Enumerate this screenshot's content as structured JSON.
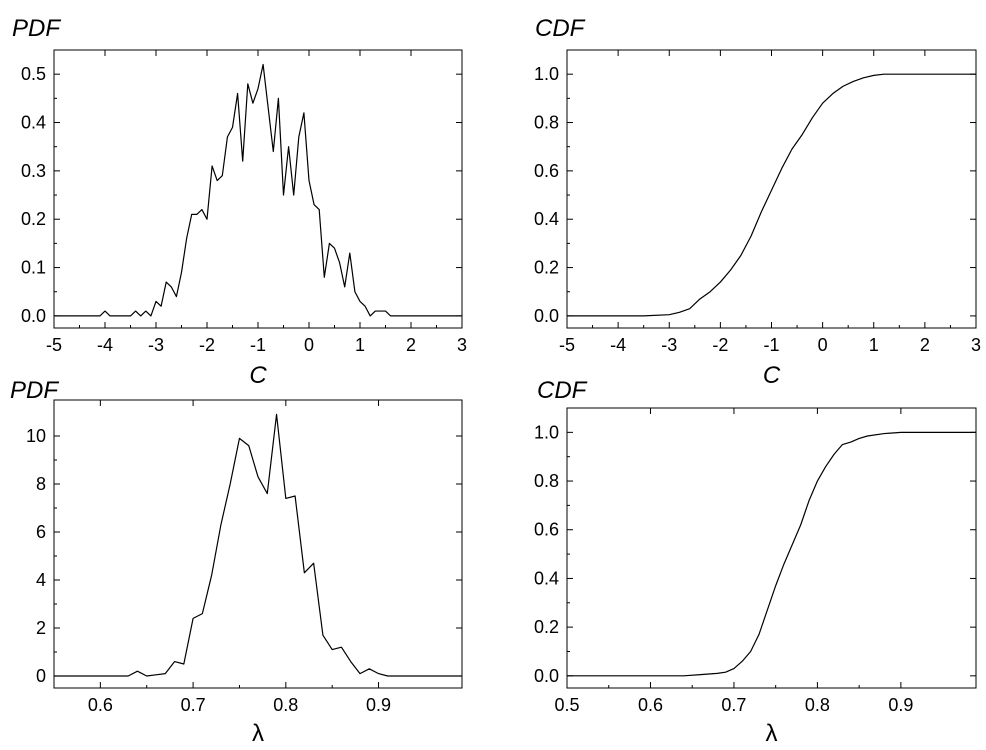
{
  "chart_data": [
    {
      "id": "pdf-c",
      "type": "line",
      "title": "PDF",
      "xlabel": "C",
      "ylabel": "",
      "xlim": [
        -5,
        3
      ],
      "ylim": [
        -0.025,
        0.55
      ],
      "xticks": [
        -5,
        -4,
        -3,
        -2,
        -1,
        0,
        1,
        2,
        3
      ],
      "xtick_labels": [
        "-5",
        "-4",
        "-3",
        "-2",
        "-1",
        "0",
        "1",
        "2",
        "3"
      ],
      "yticks": [
        0.0,
        0.1,
        0.2,
        0.3,
        0.4,
        0.5
      ],
      "ytick_labels": [
        "0.0",
        "0.1",
        "0.2",
        "0.3",
        "0.4",
        "0.5"
      ],
      "grid": false,
      "series": [
        {
          "x": [
            -5.0,
            -4.1,
            -4.0,
            -3.9,
            -3.5,
            -3.4,
            -3.3,
            -3.2,
            -3.1,
            -3.0,
            -2.9,
            -2.8,
            -2.7,
            -2.6,
            -2.5,
            -2.4,
            -2.3,
            -2.2,
            -2.1,
            -2.0,
            -1.9,
            -1.8,
            -1.7,
            -1.6,
            -1.5,
            -1.4,
            -1.3,
            -1.2,
            -1.1,
            -1.0,
            -0.9,
            -0.8,
            -0.7,
            -0.6,
            -0.5,
            -0.4,
            -0.3,
            -0.2,
            -0.1,
            0.0,
            0.1,
            0.2,
            0.3,
            0.4,
            0.5,
            0.6,
            0.7,
            0.8,
            0.9,
            1.0,
            1.1,
            1.2,
            1.3,
            1.4,
            1.5,
            1.6,
            3.0
          ],
          "y": [
            0.0,
            0.0,
            0.01,
            0.0,
            0.0,
            0.01,
            0.0,
            0.01,
            0.0,
            0.03,
            0.02,
            0.07,
            0.06,
            0.04,
            0.09,
            0.16,
            0.21,
            0.21,
            0.22,
            0.2,
            0.31,
            0.28,
            0.29,
            0.37,
            0.39,
            0.46,
            0.32,
            0.48,
            0.44,
            0.47,
            0.52,
            0.43,
            0.34,
            0.45,
            0.25,
            0.35,
            0.25,
            0.37,
            0.42,
            0.28,
            0.23,
            0.22,
            0.08,
            0.15,
            0.14,
            0.11,
            0.06,
            0.13,
            0.05,
            0.03,
            0.02,
            0.0,
            0.01,
            0.01,
            0.01,
            0.0,
            0.0
          ]
        }
      ]
    },
    {
      "id": "cdf-c",
      "type": "line",
      "title": "CDF",
      "xlabel": "C",
      "ylabel": "",
      "xlim": [
        -5,
        3
      ],
      "ylim": [
        -0.05,
        1.1
      ],
      "xticks": [
        -5,
        -4,
        -3,
        -2,
        -1,
        0,
        1,
        2,
        3
      ],
      "xtick_labels": [
        "-5",
        "-4",
        "-3",
        "-2",
        "-1",
        "0",
        "1",
        "2",
        "3"
      ],
      "yticks": [
        0.0,
        0.2,
        0.4,
        0.6,
        0.8,
        1.0
      ],
      "ytick_labels": [
        "0.0",
        "0.2",
        "0.4",
        "0.6",
        "0.8",
        "1.0"
      ],
      "grid": false,
      "series": [
        {
          "x": [
            -5.0,
            -3.5,
            -3.0,
            -2.8,
            -2.6,
            -2.4,
            -2.2,
            -2.0,
            -1.8,
            -1.6,
            -1.4,
            -1.2,
            -1.0,
            -0.8,
            -0.6,
            -0.4,
            -0.2,
            0.0,
            0.2,
            0.4,
            0.6,
            0.8,
            1.0,
            1.2,
            1.5,
            2.0,
            3.0
          ],
          "y": [
            0.0,
            0.0,
            0.005,
            0.015,
            0.03,
            0.07,
            0.1,
            0.14,
            0.19,
            0.25,
            0.33,
            0.43,
            0.52,
            0.61,
            0.69,
            0.75,
            0.82,
            0.88,
            0.92,
            0.95,
            0.97,
            0.985,
            0.995,
            1.0,
            1.0,
            1.0,
            1.0
          ]
        }
      ]
    },
    {
      "id": "pdf-lambda",
      "type": "line",
      "title": "PDF",
      "xlabel": "λ",
      "ylabel": "",
      "xlim": [
        0.55,
        0.99
      ],
      "ylim": [
        -0.5,
        11.5
      ],
      "xticks": [
        0.6,
        0.7,
        0.8,
        0.9
      ],
      "xtick_labels": [
        "0.6",
        "0.7",
        "0.8",
        "0.9"
      ],
      "yticks": [
        0,
        2,
        4,
        6,
        8,
        10
      ],
      "ytick_labels": [
        "0",
        "2",
        "4",
        "6",
        "8",
        "10"
      ],
      "grid": false,
      "series": [
        {
          "x": [
            0.55,
            0.63,
            0.64,
            0.65,
            0.66,
            0.67,
            0.68,
            0.69,
            0.7,
            0.71,
            0.72,
            0.73,
            0.74,
            0.75,
            0.76,
            0.77,
            0.78,
            0.79,
            0.8,
            0.81,
            0.82,
            0.83,
            0.84,
            0.85,
            0.86,
            0.87,
            0.88,
            0.89,
            0.9,
            0.91,
            0.99
          ],
          "y": [
            0.0,
            0.0,
            0.2,
            0.0,
            0.05,
            0.1,
            0.6,
            0.5,
            2.4,
            2.6,
            4.2,
            6.3,
            8.0,
            9.9,
            9.6,
            8.3,
            7.6,
            10.9,
            7.4,
            7.5,
            4.3,
            4.7,
            1.7,
            1.1,
            1.2,
            0.6,
            0.1,
            0.3,
            0.1,
            0.0,
            0.0
          ]
        }
      ]
    },
    {
      "id": "cdf-lambda",
      "type": "line",
      "title": "CDF",
      "xlabel": "λ",
      "ylabel": "",
      "xlim": [
        0.5,
        0.99
      ],
      "ylim": [
        -0.05,
        1.1
      ],
      "xticks": [
        0.5,
        0.6,
        0.7,
        0.8,
        0.9
      ],
      "xtick_labels": [
        "0.5",
        "0.6",
        "0.7",
        "0.8",
        "0.9"
      ],
      "yticks": [
        0.0,
        0.2,
        0.4,
        0.6,
        0.8,
        1.0
      ],
      "ytick_labels": [
        "0.0",
        "0.2",
        "0.4",
        "0.6",
        "0.8",
        "1.0"
      ],
      "grid": false,
      "series": [
        {
          "x": [
            0.5,
            0.64,
            0.66,
            0.68,
            0.69,
            0.7,
            0.71,
            0.72,
            0.73,
            0.74,
            0.75,
            0.76,
            0.77,
            0.78,
            0.79,
            0.8,
            0.81,
            0.82,
            0.83,
            0.84,
            0.85,
            0.86,
            0.88,
            0.9,
            0.99
          ],
          "y": [
            0.0,
            0.0,
            0.005,
            0.01,
            0.015,
            0.03,
            0.06,
            0.1,
            0.17,
            0.27,
            0.37,
            0.46,
            0.54,
            0.62,
            0.72,
            0.8,
            0.86,
            0.91,
            0.95,
            0.96,
            0.975,
            0.985,
            0.995,
            1.0,
            1.0
          ]
        }
      ]
    }
  ]
}
